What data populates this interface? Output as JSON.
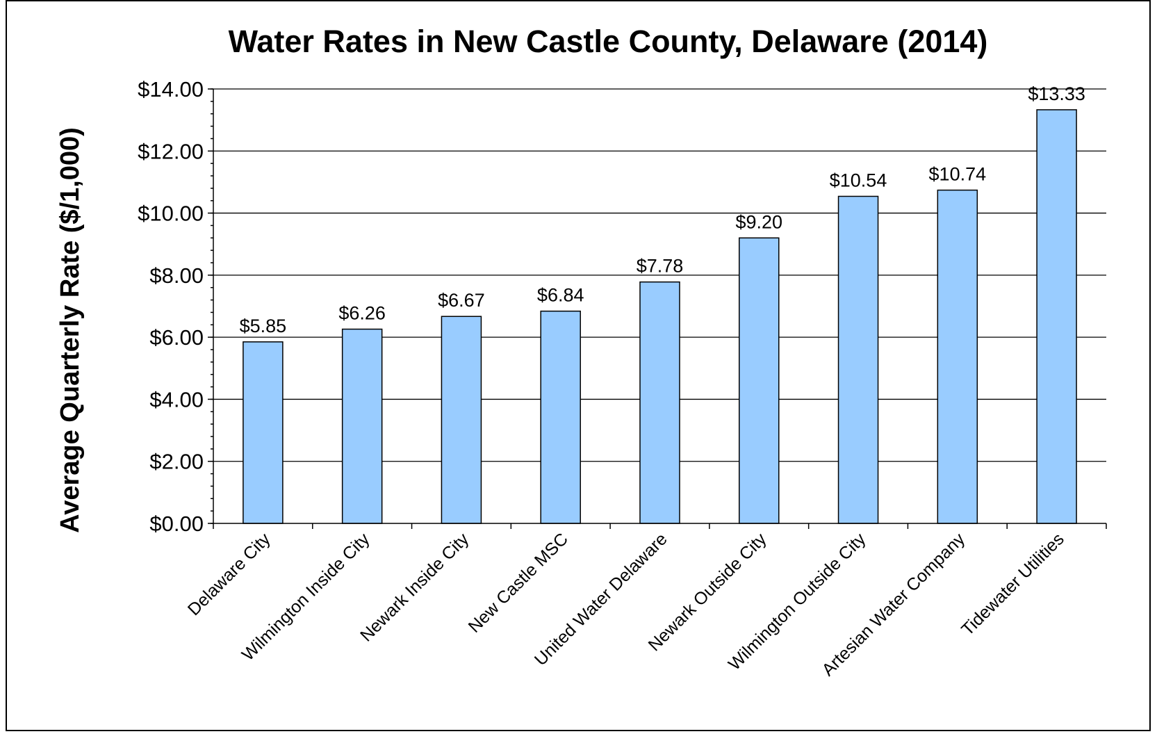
{
  "chart_data": {
    "type": "bar",
    "title": "Water Rates in New Castle County, Delaware (2014)",
    "xlabel": "",
    "ylabel": "Average Quarterly Rate ($/1,000)",
    "ylim": [
      0,
      14
    ],
    "yticks": [
      0,
      2,
      4,
      6,
      8,
      10,
      12,
      14
    ],
    "ytick_labels": [
      "$0.00",
      "$2.00",
      "$4.00",
      "$6.00",
      "$8.00",
      "$10.00",
      "$12.00",
      "$14.00"
    ],
    "grid": true,
    "legend": "none",
    "bar_color": "#99ccff",
    "categories": [
      "Delaware City",
      "Wilmington Inside City",
      "Newark Inside City",
      "New Castle MSC",
      "United Water Delaware",
      "Newark Outside City",
      "Wilmington Outside City",
      "Artesian Water Company",
      "Tidewater Utilities"
    ],
    "values": [
      5.85,
      6.26,
      6.67,
      6.84,
      7.78,
      9.2,
      10.54,
      10.74,
      13.33
    ],
    "data_labels": [
      "$5.85",
      "$6.26",
      "$6.67",
      "$6.84",
      "$7.78",
      "$9.20",
      "$10.54",
      "$10.74",
      "$13.33"
    ]
  }
}
